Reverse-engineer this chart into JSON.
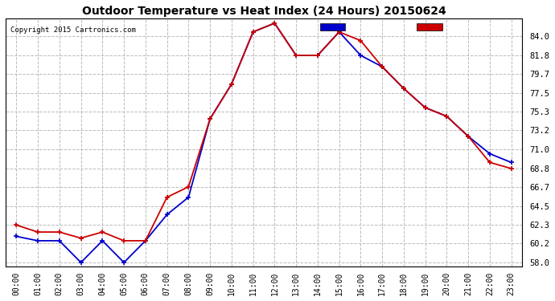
{
  "title": "Outdoor Temperature vs Heat Index (24 Hours) 20150624",
  "copyright": "Copyright 2015 Cartronics.com",
  "hours": [
    "00:00",
    "01:00",
    "02:00",
    "03:00",
    "04:00",
    "05:00",
    "06:00",
    "07:00",
    "08:00",
    "09:00",
    "10:00",
    "11:00",
    "12:00",
    "13:00",
    "14:00",
    "15:00",
    "16:00",
    "17:00",
    "18:00",
    "19:00",
    "20:00",
    "21:00",
    "22:00",
    "23:00"
  ],
  "temperature": [
    62.3,
    61.5,
    61.5,
    60.8,
    61.5,
    60.5,
    60.5,
    65.5,
    66.7,
    74.5,
    78.5,
    84.5,
    85.5,
    81.8,
    81.8,
    84.5,
    83.5,
    80.5,
    78.0,
    75.8,
    74.8,
    72.5,
    69.5,
    68.8
  ],
  "heat_index": [
    61.0,
    60.5,
    60.5,
    58.0,
    60.5,
    58.0,
    60.5,
    63.5,
    65.5,
    74.5,
    78.5,
    84.5,
    85.5,
    81.8,
    81.8,
    84.5,
    81.8,
    80.5,
    78.0,
    75.8,
    74.8,
    72.5,
    70.5,
    69.5
  ],
  "ylim": [
    57.5,
    86.0
  ],
  "yticks": [
    58.0,
    60.2,
    62.3,
    64.5,
    66.7,
    68.8,
    71.0,
    73.2,
    75.3,
    77.5,
    79.7,
    81.8,
    84.0
  ],
  "temp_color": "#cc0000",
  "heat_color": "#0000cc",
  "bg_color": "#ffffff",
  "plot_bg_color": "#ffffff",
  "grid_color": "#bbbbbb",
  "legend_heat_bg": "#0000cc",
  "legend_temp_bg": "#cc0000"
}
